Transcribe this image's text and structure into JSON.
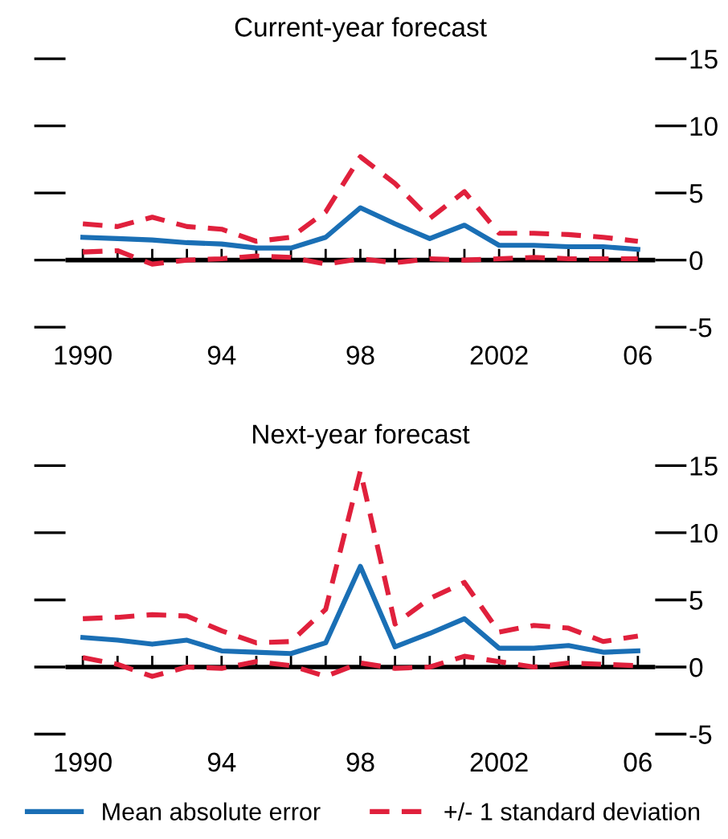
{
  "chart_data": [
    {
      "type": "line",
      "title": "Current-year forecast",
      "x": [
        1990,
        1991,
        1992,
        1993,
        1994,
        1995,
        1996,
        1997,
        1998,
        1999,
        2000,
        2001,
        2002,
        2003,
        2004,
        2005,
        2006
      ],
      "xlim": [
        1989.5,
        2006.5
      ],
      "xticks": [
        {
          "value": 1990,
          "label": "1990"
        },
        {
          "value": 1994,
          "label": "94"
        },
        {
          "value": 1998,
          "label": "98"
        },
        {
          "value": 2002,
          "label": "2002"
        },
        {
          "value": 2006,
          "label": "06"
        }
      ],
      "ylim": [
        -5,
        15
      ],
      "yticks": [
        {
          "value": -5,
          "label": "-5"
        },
        0,
        5,
        10,
        15
      ],
      "grid": false,
      "ref_lines": [
        {
          "axis": "y",
          "value": 0,
          "color": "#000000"
        }
      ],
      "series": [
        {
          "color": "#1a6fb5",
          "line_style": "solid",
          "values": [
            1.7,
            1.6,
            1.5,
            1.3,
            1.2,
            0.9,
            0.9,
            1.7,
            3.9,
            2.7,
            1.6,
            2.6,
            1.1,
            1.1,
            1.0,
            1.0,
            0.8
          ]
        },
        {
          "color": "#e0203c",
          "line_style": "dashed",
          "values": [
            2.7,
            2.5,
            3.2,
            2.5,
            2.3,
            1.4,
            1.7,
            3.6,
            7.7,
            5.7,
            3.1,
            5.1,
            2.0,
            2.0,
            1.9,
            1.7,
            1.4
          ]
        },
        {
          "color": "#e0203c",
          "line_style": "dashed",
          "values": [
            0.6,
            0.7,
            -0.3,
            0,
            0.1,
            0.3,
            0.2,
            -0.3,
            0.1,
            -0.2,
            0.1,
            0,
            0.1,
            0.2,
            0.1,
            0.1,
            0.1
          ]
        }
      ]
    },
    {
      "type": "line",
      "title": "Next-year forecast",
      "x": [
        1990,
        1991,
        1992,
        1993,
        1994,
        1995,
        1996,
        1997,
        1998,
        1999,
        2000,
        2001,
        2002,
        2003,
        2004,
        2005,
        2006
      ],
      "xlim": [
        1989.5,
        2006.5
      ],
      "xticks": [
        {
          "value": 1990,
          "label": "1990"
        },
        {
          "value": 1994,
          "label": "94"
        },
        {
          "value": 1998,
          "label": "98"
        },
        {
          "value": 2002,
          "label": "2002"
        },
        {
          "value": 2006,
          "label": "06"
        }
      ],
      "ylim": [
        -5,
        15
      ],
      "yticks": [
        {
          "value": -5,
          "label": "-5"
        },
        0,
        5,
        10,
        15
      ],
      "grid": false,
      "legend": "bottom",
      "ref_lines": [
        {
          "axis": "y",
          "value": 0,
          "color": "#000000"
        }
      ],
      "series": [
        {
          "name": "Mean absolute error",
          "color": "#1a6fb5",
          "line_style": "solid",
          "values": [
            2.2,
            2.0,
            1.7,
            2.0,
            1.2,
            1.1,
            1.0,
            1.8,
            7.5,
            1.5,
            2.5,
            3.6,
            1.4,
            1.4,
            1.6,
            1.1,
            1.2
          ]
        },
        {
          "name": "+/- 1 standard deviation",
          "color": "#e0203c",
          "line_style": "dashed",
          "values": [
            3.6,
            3.7,
            3.9,
            3.8,
            2.7,
            1.8,
            1.9,
            4.3,
            14.6,
            3.2,
            5.1,
            6.3,
            2.6,
            3.1,
            2.9,
            1.9,
            2.3
          ]
        },
        {
          "color": "#e0203c",
          "line_style": "dashed",
          "values": [
            0.7,
            0.2,
            -0.7,
            0,
            -0.1,
            0.4,
            0.1,
            -0.7,
            0.3,
            -0.1,
            0,
            0.8,
            0.4,
            0,
            0.3,
            0.2,
            0.1
          ]
        }
      ]
    }
  ]
}
